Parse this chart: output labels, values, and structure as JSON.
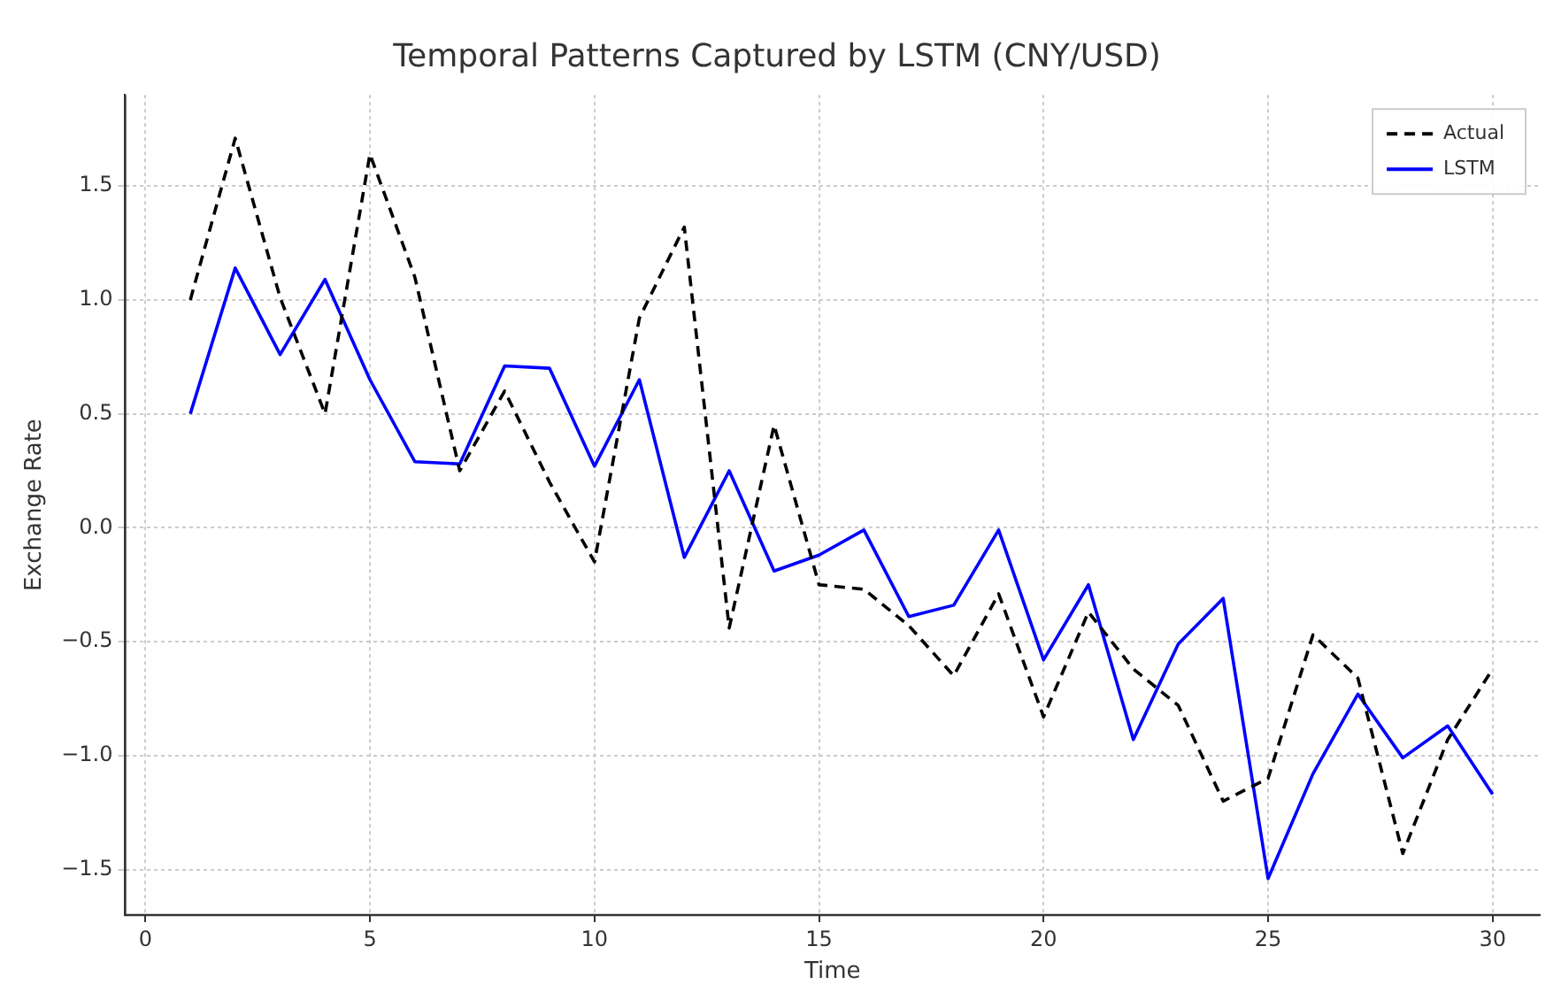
{
  "chart_data": {
    "type": "line",
    "title": "Temporal Patterns Captured by LSTM (CNY/USD)",
    "xlabel": "Time",
    "ylabel": "Exchange Rate",
    "x": [
      1,
      2,
      3,
      4,
      5,
      6,
      7,
      8,
      9,
      10,
      11,
      12,
      13,
      14,
      15,
      16,
      17,
      18,
      19,
      20,
      21,
      22,
      23,
      24,
      25,
      26,
      27,
      28,
      29,
      30
    ],
    "series": [
      {
        "name": "Actual",
        "color": "#000000",
        "line_style": "dashed",
        "values": [
          1.0,
          1.71,
          1.01,
          0.5,
          1.64,
          1.1,
          0.25,
          0.6,
          0.2,
          -0.15,
          0.92,
          1.32,
          -0.44,
          0.45,
          -0.25,
          -0.27,
          -0.43,
          -0.65,
          -0.29,
          -0.83,
          -0.37,
          -0.62,
          -0.78,
          -1.2,
          -1.1,
          -0.47,
          -0.66,
          -1.43,
          -0.93,
          -0.62
        ]
      },
      {
        "name": "LSTM",
        "color": "#0000ff",
        "line_style": "solid",
        "values": [
          0.5,
          1.14,
          0.76,
          1.09,
          0.65,
          0.29,
          0.28,
          0.71,
          0.7,
          0.27,
          0.65,
          -0.13,
          0.25,
          -0.19,
          -0.12,
          -0.01,
          -0.39,
          -0.34,
          -0.01,
          -0.58,
          -0.25,
          -0.93,
          -0.51,
          -0.31,
          -1.54,
          -1.08,
          -0.73,
          -1.01,
          -0.87,
          -1.17
        ]
      }
    ],
    "xlim": [
      -0.45,
      31.05
    ],
    "xticks": [
      0,
      5,
      10,
      15,
      20,
      25,
      30
    ],
    "ylim": [
      -1.7,
      1.9
    ],
    "yticks": [
      {
        "value": -1.5,
        "label": "−1.5"
      },
      {
        "value": -1.0,
        "label": "−1.0"
      },
      {
        "value": -0.5,
        "label": "−0.5"
      },
      {
        "value": 0,
        "label": "0.0"
      },
      {
        "value": 0.5,
        "label": "0.5"
      },
      {
        "value": 1.0,
        "label": "1.0"
      },
      {
        "value": 1.5,
        "label": "1.5"
      }
    ],
    "grid": true,
    "legend": "top right",
    "marker": "none"
  }
}
